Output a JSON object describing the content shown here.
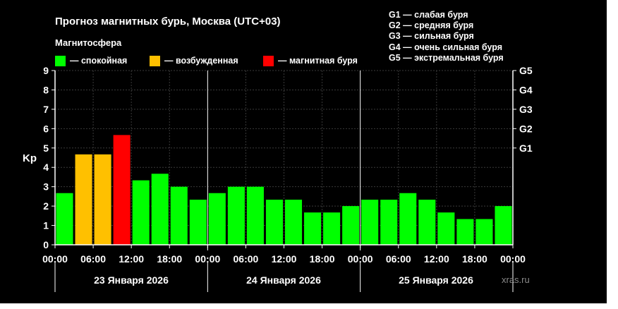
{
  "title": "Прогноз магнитных бурь, Москва (UTC+03)",
  "subtitle": "Магнитосфера",
  "legend": [
    {
      "label": "— спокойная",
      "color": "#00ff00"
    },
    {
      "label": "— возбужденная",
      "color": "#ffc000"
    },
    {
      "label": "— магнитная буря",
      "color": "#ff0000"
    }
  ],
  "g_scale": [
    "G1 — слабая буря",
    "G2 — средняя буря",
    "G3 — сильная буря",
    "G4 — очень сильная буря",
    "G5 — экстремальная буря"
  ],
  "dates": [
    "23 Января 2026",
    "24 Января 2026",
    "25 Января 2026"
  ],
  "watermark": "xras.ru",
  "chart_data": {
    "type": "bar",
    "ylabel": "Kp",
    "ylim": [
      0,
      9
    ],
    "yticks": [
      "0",
      "1",
      "2",
      "3",
      "4",
      "5",
      "6",
      "7",
      "8",
      "9"
    ],
    "right_ticks": [
      {
        "kp": 5,
        "label": "G1"
      },
      {
        "kp": 6,
        "label": "G2"
      },
      {
        "kp": 7,
        "label": "G3"
      },
      {
        "kp": 8,
        "label": "G4"
      },
      {
        "kp": 9,
        "label": "G5"
      }
    ],
    "xtick_labels": [
      "00:00",
      "06:00",
      "12:00",
      "18:00",
      "00:00",
      "06:00",
      "12:00",
      "18:00",
      "00:00",
      "06:00",
      "12:00",
      "18:00",
      "00:00"
    ],
    "values": [
      2.67,
      4.67,
      4.67,
      5.67,
      3.33,
      3.67,
      3.0,
      2.33,
      2.67,
      3.0,
      3.0,
      2.33,
      2.33,
      1.67,
      1.67,
      2.0,
      2.33,
      2.33,
      2.67,
      2.33,
      1.67,
      1.33,
      1.33,
      2.0
    ],
    "bar_colors": [
      "#00ff00",
      "#ffc000",
      "#ffc000",
      "#ff0000",
      "#00ff00",
      "#00ff00",
      "#00ff00",
      "#00ff00",
      "#00ff00",
      "#00ff00",
      "#00ff00",
      "#00ff00",
      "#00ff00",
      "#00ff00",
      "#00ff00",
      "#00ff00",
      "#00ff00",
      "#00ff00",
      "#00ff00",
      "#00ff00",
      "#00ff00",
      "#00ff00",
      "#00ff00",
      "#00ff00"
    ],
    "grid": true
  }
}
